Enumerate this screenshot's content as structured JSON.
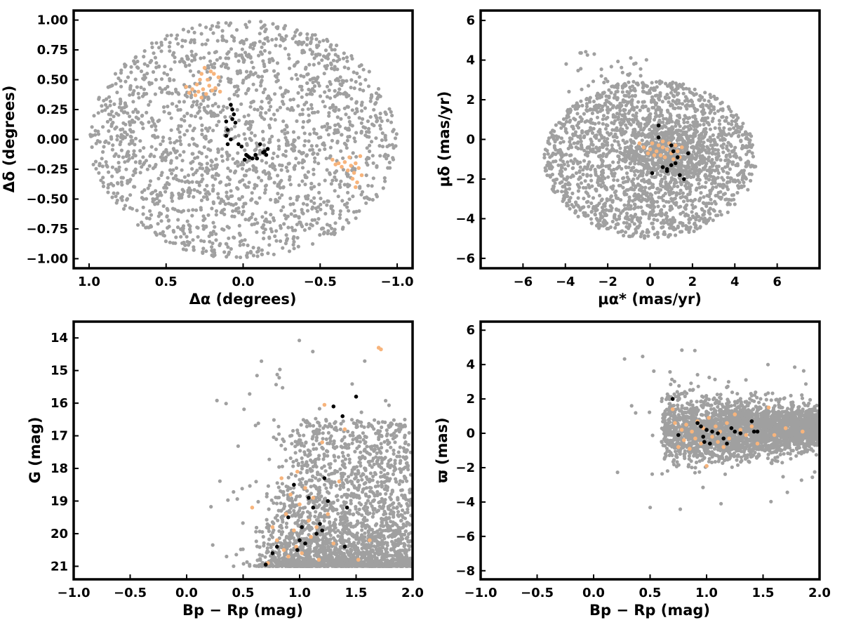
{
  "colors": {
    "background": "#a0a0a0",
    "group_a": "#f7b47c",
    "group_b": "#000000"
  },
  "chart_data": [
    {
      "id": "position",
      "type": "scatter",
      "xlabel": "Δα (degrees)",
      "ylabel": "Δδ (degrees)",
      "xlim": [
        1.1,
        -1.1
      ],
      "ylim": [
        -1.08,
        1.08
      ],
      "x_inverted": true,
      "xticks": [
        1.0,
        0.5,
        0.0,
        -0.5,
        -1.0
      ],
      "xtick_labels": [
        "1.0",
        "0.5",
        "0.0",
        "−0.5",
        "−1.0"
      ],
      "yticks": [
        -1.0,
        -0.75,
        -0.5,
        -0.25,
        0.0,
        0.25,
        0.5,
        0.75,
        1.0
      ],
      "ytick_labels": [
        "−1.00",
        "−0.75",
        "−0.50",
        "−0.25",
        "0.00",
        "0.25",
        "0.50",
        "0.75",
        "1.00"
      ],
      "background_field": {
        "shape": "disk",
        "center": [
          0,
          0
        ],
        "radius": 1.0,
        "n_points": 1900
      },
      "series": [
        {
          "color_key": "group_a",
          "points": [
            [
              0.37,
              0.44
            ],
            [
              0.35,
              0.39
            ],
            [
              0.33,
              0.42
            ],
            [
              0.31,
              0.37
            ],
            [
              0.3,
              0.46
            ],
            [
              0.29,
              0.4
            ],
            [
              0.28,
              0.5
            ],
            [
              0.27,
              0.55
            ],
            [
              0.26,
              0.42
            ],
            [
              0.25,
              0.6
            ],
            [
              0.24,
              0.38
            ],
            [
              0.23,
              0.5
            ],
            [
              0.22,
              0.45
            ],
            [
              0.21,
              0.57
            ],
            [
              0.2,
              0.41
            ],
            [
              0.19,
              0.55
            ],
            [
              0.18,
              0.43
            ],
            [
              0.16,
              0.52
            ],
            [
              0.15,
              0.4
            ],
            [
              0.27,
              0.35
            ],
            [
              -0.58,
              -0.17
            ],
            [
              -0.6,
              -0.21
            ],
            [
              -0.62,
              -0.2
            ],
            [
              -0.64,
              -0.23
            ],
            [
              -0.66,
              -0.19
            ],
            [
              -0.68,
              -0.26
            ],
            [
              -0.69,
              -0.15
            ],
            [
              -0.7,
              -0.22
            ],
            [
              -0.71,
              -0.33
            ],
            [
              -0.72,
              -0.28
            ],
            [
              -0.73,
              -0.2
            ],
            [
              -0.74,
              -0.36
            ],
            [
              -0.75,
              -0.24
            ],
            [
              -0.76,
              -0.14
            ],
            [
              -0.77,
              -0.3
            ],
            [
              -0.73,
              -0.4
            ]
          ]
        },
        {
          "color_key": "group_b",
          "points": [
            [
              0.08,
              0.29
            ],
            [
              0.07,
              0.25
            ],
            [
              0.06,
              0.21
            ],
            [
              0.07,
              0.17
            ],
            [
              0.05,
              0.14
            ],
            [
              0.11,
              0.15
            ],
            [
              0.1,
              0.08
            ],
            [
              0.11,
              0.03
            ],
            [
              0.08,
              0.0
            ],
            [
              0.1,
              -0.04
            ],
            [
              0.03,
              -0.04
            ],
            [
              0.01,
              -0.06
            ],
            [
              -0.02,
              -0.13
            ],
            [
              -0.01,
              -0.17
            ],
            [
              -0.03,
              -0.14
            ],
            [
              -0.04,
              -0.15
            ],
            [
              -0.08,
              -0.13
            ],
            [
              -0.11,
              -0.04
            ],
            [
              -0.13,
              -0.11
            ],
            [
              -0.14,
              -0.1
            ],
            [
              -0.15,
              -0.13
            ],
            [
              -0.16,
              -0.08
            ],
            [
              -0.06,
              -0.16
            ],
            [
              -0.09,
              -0.16
            ]
          ]
        }
      ]
    },
    {
      "id": "proper-motion",
      "type": "scatter",
      "xlabel": "μα* (mas/yr)",
      "ylabel": "μδ (mas/yr)",
      "xlim": [
        -8,
        8
      ],
      "ylim": [
        -6.5,
        6.5
      ],
      "xticks": [
        -6,
        -4,
        -2,
        0,
        2,
        4,
        6
      ],
      "xtick_labels": [
        "−6",
        "−4",
        "−2",
        "0",
        "2",
        "4",
        "6"
      ],
      "yticks": [
        -6,
        -4,
        -2,
        0,
        2,
        4,
        6
      ],
      "ytick_labels": [
        "−6",
        "−4",
        "−2",
        "0",
        "2",
        "4",
        "6"
      ],
      "background_field": {
        "shape": "ellipse",
        "center": [
          0,
          -1
        ],
        "radius_x": 5,
        "radius_y": 4,
        "n_points": 2000
      },
      "series": [
        {
          "color_key": "group_a",
          "points": [
            [
              -0.5,
              -0.2
            ],
            [
              -0.3,
              -0.4
            ],
            [
              0.0,
              -0.5
            ],
            [
              0.1,
              -0.2
            ],
            [
              0.3,
              -0.6
            ],
            [
              0.4,
              -0.3
            ],
            [
              0.5,
              -0.8
            ],
            [
              0.6,
              -0.4
            ],
            [
              0.7,
              -0.9
            ],
            [
              0.8,
              -0.5
            ],
            [
              0.9,
              -0.2
            ],
            [
              1.0,
              -0.7
            ],
            [
              1.1,
              -1.0
            ],
            [
              1.2,
              -0.3
            ],
            [
              1.3,
              -0.6
            ],
            [
              1.4,
              -0.9
            ],
            [
              0.2,
              -0.8
            ],
            [
              0.6,
              -0.1
            ],
            [
              -0.1,
              -0.7
            ],
            [
              1.5,
              -0.4
            ]
          ]
        },
        {
          "color_key": "group_b",
          "points": [
            [
              0.4,
              0.7
            ],
            [
              0.4,
              0.1
            ],
            [
              0.6,
              -1.4
            ],
            [
              0.8,
              -1.5
            ],
            [
              0.8,
              -1.6
            ],
            [
              1.0,
              -0.3
            ],
            [
              1.1,
              -0.6
            ],
            [
              1.2,
              -1.2
            ],
            [
              1.3,
              -0.9
            ],
            [
              1.4,
              -1.8
            ],
            [
              1.6,
              -2.0
            ],
            [
              1.8,
              -0.7
            ],
            [
              0.1,
              -1.7
            ],
            [
              1.0,
              -1.3
            ]
          ]
        }
      ]
    },
    {
      "id": "cmd",
      "type": "scatter",
      "xlabel": "Bp − Rp (mag)",
      "ylabel": "G (mag)",
      "xlim": [
        -1.0,
        2.0
      ],
      "ylim": [
        21.4,
        13.5
      ],
      "y_inverted": true,
      "xticks": [
        -1.0,
        -0.5,
        0.0,
        0.5,
        1.0,
        1.5,
        2.0
      ],
      "xtick_labels": [
        "−1.0",
        "−0.5",
        "0.0",
        "0.5",
        "1.0",
        "1.5",
        "2.0"
      ],
      "yticks": [
        14,
        15,
        16,
        17,
        18,
        19,
        20,
        21
      ],
      "ytick_labels": [
        "14",
        "15",
        "16",
        "17",
        "18",
        "19",
        "20",
        "21"
      ],
      "series": [
        {
          "color_key": "group_a",
          "points": [
            [
              0.58,
              19.2
            ],
            [
              0.72,
              20.9
            ],
            [
              0.76,
              19.8
            ],
            [
              0.8,
              20.2
            ],
            [
              0.84,
              18.3
            ],
            [
              0.86,
              20.5
            ],
            [
              0.88,
              19.4
            ],
            [
              0.9,
              20.7
            ],
            [
              0.92,
              18.8
            ],
            [
              0.95,
              19.9
            ],
            [
              0.97,
              20.4
            ],
            [
              0.98,
              18.1
            ],
            [
              1.0,
              19.1
            ],
            [
              1.02,
              20.6
            ],
            [
              1.05,
              18.6
            ],
            [
              1.08,
              19.6
            ],
            [
              1.1,
              20.1
            ],
            [
              1.12,
              18.9
            ],
            [
              1.15,
              19.8
            ],
            [
              1.17,
              20.8
            ],
            [
              1.2,
              17.2
            ],
            [
              1.22,
              16.05
            ],
            [
              1.25,
              19.4
            ],
            [
              1.3,
              20.3
            ],
            [
              1.35,
              18.4
            ],
            [
              1.4,
              16.8
            ],
            [
              1.52,
              20.8
            ],
            [
              1.62,
              20.2
            ],
            [
              1.7,
              14.3
            ],
            [
              1.72,
              14.35
            ]
          ]
        },
        {
          "color_key": "group_b",
          "points": [
            [
              0.7,
              20.95
            ],
            [
              0.76,
              20.6
            ],
            [
              0.8,
              20.4
            ],
            [
              0.9,
              19.5
            ],
            [
              0.95,
              18.5
            ],
            [
              0.98,
              20.5
            ],
            [
              1.0,
              20.2
            ],
            [
              1.02,
              19.8
            ],
            [
              1.05,
              20.3
            ],
            [
              1.08,
              18.9
            ],
            [
              1.12,
              19.2
            ],
            [
              1.15,
              20.0
            ],
            [
              1.18,
              19.7
            ],
            [
              1.2,
              19.9
            ],
            [
              1.22,
              18.3
            ],
            [
              1.25,
              19.0
            ],
            [
              1.38,
              16.4
            ],
            [
              1.4,
              20.4
            ],
            [
              1.42,
              19.2
            ],
            [
              1.5,
              15.8
            ],
            [
              1.3,
              16.1
            ],
            [
              2.0,
              20.0
            ]
          ]
        }
      ]
    },
    {
      "id": "parallax",
      "type": "scatter",
      "xlabel": "Bp − Rp (mag)",
      "ylabel": "ϖ (mas)",
      "xlim": [
        -1.0,
        2.0
      ],
      "ylim": [
        -8.5,
        6.5
      ],
      "xticks": [
        -1.0,
        -0.5,
        0.0,
        0.5,
        1.0,
        1.5,
        2.0
      ],
      "xtick_labels": [
        "−1.0",
        "−0.5",
        "0.0",
        "0.5",
        "1.0",
        "1.5",
        "2.0"
      ],
      "yticks": [
        -8,
        -6,
        -4,
        -2,
        0,
        2,
        4,
        6
      ],
      "ytick_labels": [
        "−8",
        "−6",
        "−4",
        "−2",
        "0",
        "2",
        "4",
        "6"
      ],
      "series": [
        {
          "color_key": "group_a",
          "points": [
            [
              0.7,
              1.4
            ],
            [
              0.72,
              0.6
            ],
            [
              0.75,
              -0.8
            ],
            [
              0.78,
              0.2
            ],
            [
              0.8,
              -0.4
            ],
            [
              0.82,
              0.5
            ],
            [
              0.85,
              -0.9
            ],
            [
              0.87,
              0.1
            ],
            [
              0.9,
              -0.3
            ],
            [
              0.92,
              0.7
            ],
            [
              0.95,
              -0.6
            ],
            [
              0.97,
              0.3
            ],
            [
              1.0,
              -1.9
            ],
            [
              1.02,
              0.9
            ],
            [
              1.05,
              -0.2
            ],
            [
              1.08,
              0.4
            ],
            [
              1.1,
              -0.5
            ],
            [
              1.12,
              0.1
            ],
            [
              1.15,
              -0.8
            ],
            [
              1.18,
              0.6
            ],
            [
              1.2,
              -0.3
            ],
            [
              1.25,
              1.1
            ],
            [
              1.3,
              0.2
            ],
            [
              1.35,
              -0.1
            ],
            [
              1.4,
              0.4
            ],
            [
              1.45,
              -0.6
            ],
            [
              1.55,
              1.5
            ],
            [
              1.6,
              -0.1
            ],
            [
              1.7,
              0.3
            ],
            [
              1.85,
              0.1
            ]
          ]
        },
        {
          "color_key": "group_b",
          "points": [
            [
              0.7,
              2.0
            ],
            [
              0.75,
              -0.1
            ],
            [
              0.92,
              0.6
            ],
            [
              0.95,
              0.4
            ],
            [
              0.97,
              -0.2
            ],
            [
              0.98,
              -0.5
            ],
            [
              1.0,
              0.2
            ],
            [
              1.03,
              -0.6
            ],
            [
              1.05,
              0.1
            ],
            [
              1.1,
              0.0
            ],
            [
              1.15,
              -0.3
            ],
            [
              1.18,
              -0.6
            ],
            [
              1.22,
              0.3
            ],
            [
              1.25,
              0.1
            ],
            [
              1.3,
              0.0
            ],
            [
              1.4,
              0.7
            ],
            [
              1.42,
              0.1
            ],
            [
              1.45,
              0.1
            ],
            [
              2.0,
              0.2
            ]
          ]
        }
      ]
    }
  ]
}
